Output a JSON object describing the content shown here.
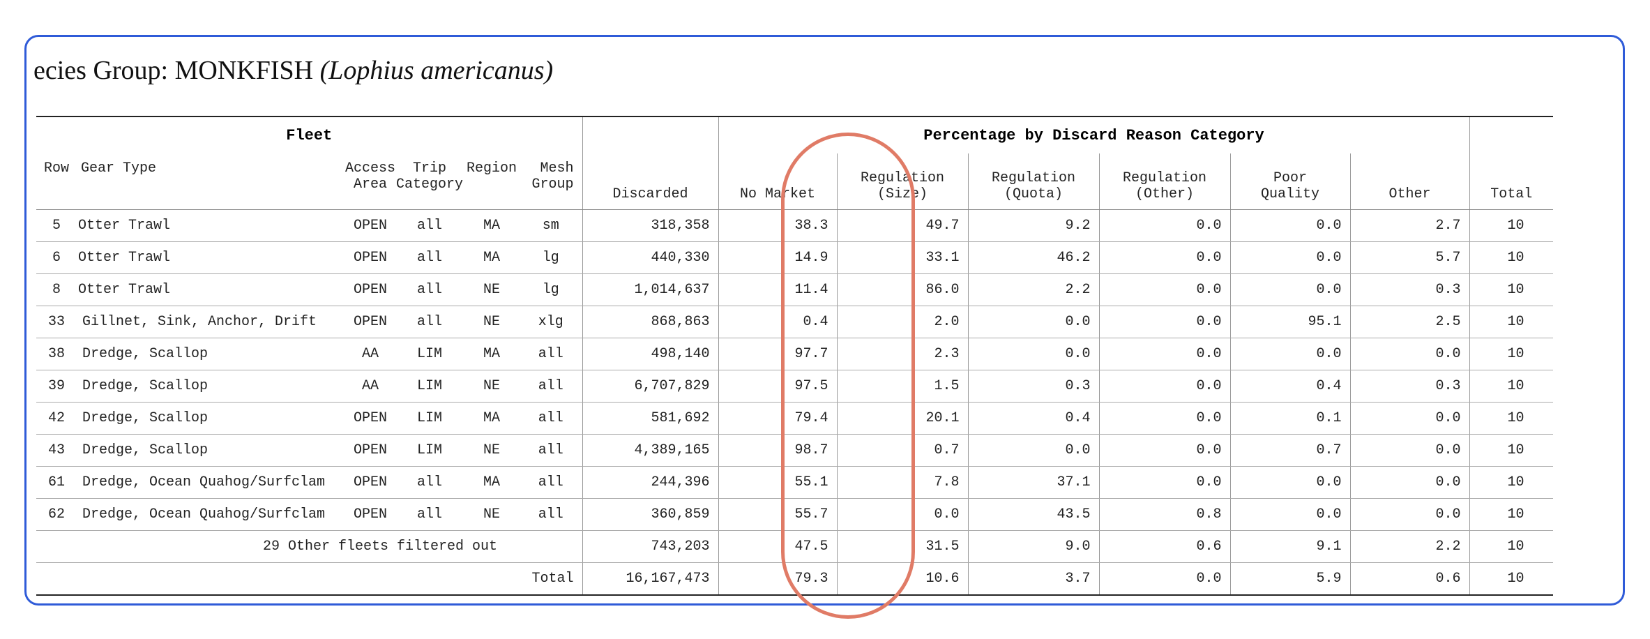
{
  "title": {
    "prefix": "ecies Group: MONKFISH",
    "scientific": "(Lophius americanus)"
  },
  "table": {
    "group_fleet": "Fleet",
    "group_percentage": "Percentage by Discard Reason Category",
    "headers": {
      "row": "Row",
      "gear_type": "Gear Type",
      "access_area": [
        "Access",
        "Area"
      ],
      "trip_category": [
        "Trip",
        "Category"
      ],
      "region": "Region",
      "mesh_group": [
        "Mesh",
        "Group"
      ],
      "discarded": "Discarded",
      "no_market": "No Market",
      "reg_size": [
        "Regulation",
        "(Size)"
      ],
      "reg_quota": [
        "Regulation",
        "(Quota)"
      ],
      "reg_other": [
        "Regulation",
        "(Other)"
      ],
      "poor_quality": [
        "Poor",
        "Quality"
      ],
      "other": "Other",
      "total": "Total"
    },
    "rows": [
      {
        "row": "5",
        "gear": "Otter Trawl",
        "access": "OPEN",
        "trip": "all",
        "region": "MA",
        "mesh": "sm",
        "discarded": "318,358",
        "no_market": "38.3",
        "reg_size": "49.7",
        "reg_quota": "9.2",
        "reg_other": "0.0",
        "poor": "0.0",
        "other": "2.7",
        "total": "10"
      },
      {
        "row": "6",
        "gear": "Otter Trawl",
        "access": "OPEN",
        "trip": "all",
        "region": "MA",
        "mesh": "lg",
        "discarded": "440,330",
        "no_market": "14.9",
        "reg_size": "33.1",
        "reg_quota": "46.2",
        "reg_other": "0.0",
        "poor": "0.0",
        "other": "5.7",
        "total": "10"
      },
      {
        "row": "8",
        "gear": "Otter Trawl",
        "access": "OPEN",
        "trip": "all",
        "region": "NE",
        "mesh": "lg",
        "discarded": "1,014,637",
        "no_market": "11.4",
        "reg_size": "86.0",
        "reg_quota": "2.2",
        "reg_other": "0.0",
        "poor": "0.0",
        "other": "0.3",
        "total": "10"
      },
      {
        "row": "33",
        "gear": "Gillnet, Sink, Anchor, Drift",
        "access": "OPEN",
        "trip": "all",
        "region": "NE",
        "mesh": "xlg",
        "discarded": "868,863",
        "no_market": "0.4",
        "reg_size": "2.0",
        "reg_quota": "0.0",
        "reg_other": "0.0",
        "poor": "95.1",
        "other": "2.5",
        "total": "10"
      },
      {
        "row": "38",
        "gear": "Dredge, Scallop",
        "access": "AA",
        "trip": "LIM",
        "region": "MA",
        "mesh": "all",
        "discarded": "498,140",
        "no_market": "97.7",
        "reg_size": "2.3",
        "reg_quota": "0.0",
        "reg_other": "0.0",
        "poor": "0.0",
        "other": "0.0",
        "total": "10"
      },
      {
        "row": "39",
        "gear": "Dredge, Scallop",
        "access": "AA",
        "trip": "LIM",
        "region": "NE",
        "mesh": "all",
        "discarded": "6,707,829",
        "no_market": "97.5",
        "reg_size": "1.5",
        "reg_quota": "0.3",
        "reg_other": "0.0",
        "poor": "0.4",
        "other": "0.3",
        "total": "10"
      },
      {
        "row": "42",
        "gear": "Dredge, Scallop",
        "access": "OPEN",
        "trip": "LIM",
        "region": "MA",
        "mesh": "all",
        "discarded": "581,692",
        "no_market": "79.4",
        "reg_size": "20.1",
        "reg_quota": "0.4",
        "reg_other": "0.0",
        "poor": "0.1",
        "other": "0.0",
        "total": "10"
      },
      {
        "row": "43",
        "gear": "Dredge, Scallop",
        "access": "OPEN",
        "trip": "LIM",
        "region": "NE",
        "mesh": "all",
        "discarded": "4,389,165",
        "no_market": "98.7",
        "reg_size": "0.7",
        "reg_quota": "0.0",
        "reg_other": "0.0",
        "poor": "0.7",
        "other": "0.0",
        "total": "10"
      },
      {
        "row": "61",
        "gear": "Dredge, Ocean Quahog/Surfclam",
        "access": "OPEN",
        "trip": "all",
        "region": "MA",
        "mesh": "all",
        "discarded": "244,396",
        "no_market": "55.1",
        "reg_size": "7.8",
        "reg_quota": "37.1",
        "reg_other": "0.0",
        "poor": "0.0",
        "other": "0.0",
        "total": "10"
      },
      {
        "row": "62",
        "gear": "Dredge, Ocean Quahog/Surfclam",
        "access": "OPEN",
        "trip": "all",
        "region": "NE",
        "mesh": "all",
        "discarded": "360,859",
        "no_market": "55.7",
        "reg_size": "0.0",
        "reg_quota": "43.5",
        "reg_other": "0.8",
        "poor": "0.0",
        "other": "0.0",
        "total": "10"
      }
    ],
    "filtered_row": {
      "label": "29 Other fleets filtered out",
      "discarded": "743,203",
      "no_market": "47.5",
      "reg_size": "31.5",
      "reg_quota": "9.0",
      "reg_other": "0.6",
      "poor": "9.1",
      "other": "2.2",
      "total": "10"
    },
    "total_row": {
      "label": "Total",
      "discarded": "16,167,473",
      "no_market": "79.3",
      "reg_size": "10.6",
      "reg_quota": "3.7",
      "reg_other": "0.0",
      "poor": "5.9",
      "other": "0.6",
      "total": "10"
    }
  },
  "colors": {
    "frame_border": "#2f5bd8",
    "highlight_ellipse": "#e07b66"
  }
}
